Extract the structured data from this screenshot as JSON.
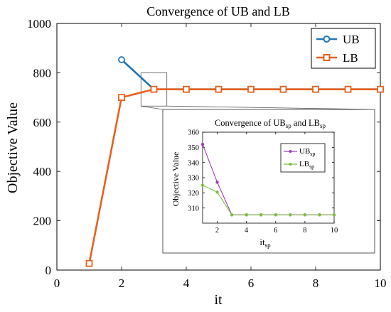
{
  "chart_data": [
    {
      "type": "line",
      "title": "Convergence of UB and LB",
      "xlabel": "it",
      "ylabel": "Objective Value",
      "xlim": [
        0,
        10
      ],
      "ylim": [
        0,
        1000
      ],
      "xticks": [
        0,
        2,
        4,
        6,
        8,
        10
      ],
      "yticks": [
        0,
        200,
        400,
        600,
        800,
        1000
      ],
      "xtick_labels": [
        "0",
        "2",
        "4",
        "6",
        "8",
        "10"
      ],
      "ytick_labels": [
        "0",
        "200",
        "400",
        "600",
        "800",
        "1000"
      ],
      "grid": false,
      "legend_position": "top-right",
      "series": [
        {
          "name": "UB",
          "color": "#1f77b4",
          "marker": "circle",
          "x": [
            2,
            3,
            4,
            5,
            6,
            7,
            8,
            9,
            10
          ],
          "y": [
            853,
            733,
            733,
            733,
            733,
            733,
            733,
            733,
            733
          ]
        },
        {
          "name": "LB",
          "color": "#e8601c",
          "marker": "square",
          "x": [
            1,
            2,
            3,
            4,
            5,
            6,
            7,
            8,
            9,
            10
          ],
          "y": [
            27,
            700,
            733,
            733,
            733,
            733,
            733,
            733,
            733,
            733
          ]
        }
      ]
    },
    {
      "type": "line",
      "inset": true,
      "title": "Convergence of UB",
      "title_sub1": "sp",
      "title_mid": " and LB",
      "title_sub2": "sp",
      "xlabel": "it",
      "xlabel_sub": "sp",
      "ylabel": "Objective Value",
      "xlim": [
        1,
        10
      ],
      "ylim": [
        300,
        360
      ],
      "xticks": [
        2,
        4,
        6,
        8,
        10
      ],
      "yticks": [
        310,
        320,
        330,
        340,
        350,
        360
      ],
      "xtick_labels": [
        "2",
        "4",
        "6",
        "8",
        "10"
      ],
      "ytick_labels": [
        "310",
        "320",
        "330",
        "340",
        "350",
        "360"
      ],
      "grid": false,
      "legend_position": "top-right",
      "series": [
        {
          "name": "UB",
          "name_sub": "sp",
          "color": "#a040b0",
          "marker": "circle",
          "x": [
            1,
            2,
            3,
            4,
            5,
            6,
            7,
            8,
            9,
            10
          ],
          "y": [
            352,
            327,
            305.5,
            305.5,
            305.5,
            305.5,
            305.5,
            305.5,
            305.5,
            305.5
          ]
        },
        {
          "name": "LB",
          "name_sub": "sp",
          "color": "#7dbf3f",
          "marker": "circle",
          "x": [
            1,
            2,
            3,
            4,
            5,
            6,
            7,
            8,
            9,
            10
          ],
          "y": [
            325,
            320.5,
            305.5,
            305.5,
            305.5,
            305.5,
            305.5,
            305.5,
            305.5,
            305.5
          ]
        }
      ]
    }
  ]
}
